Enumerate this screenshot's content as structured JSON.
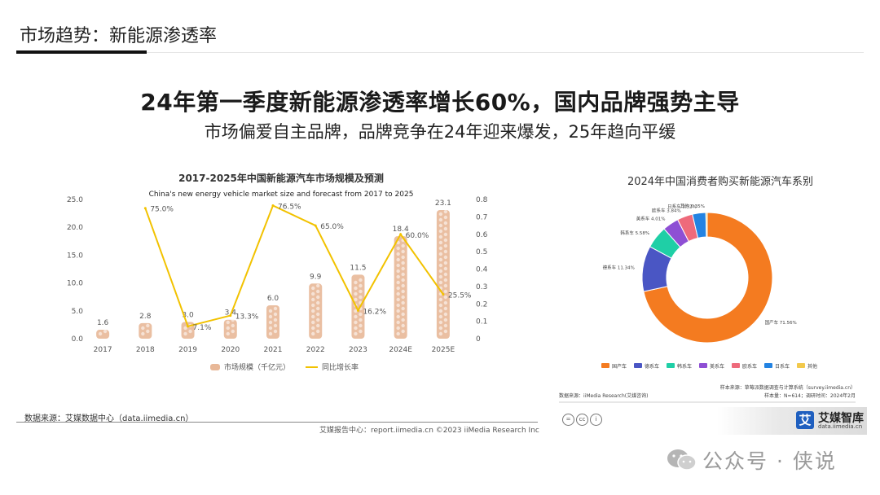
{
  "section_title": "市场趋势：新能源渗透率",
  "headline": "24年第一季度新能源渗透率增长60%，国内品牌强势主导",
  "subline": "市场偏爱自主品牌，品牌竞争在24年迎来爆发，25年趋向平缓",
  "colors": {
    "bar": "#e8b898",
    "line": "#f2c200",
    "accent": "#f47b20"
  },
  "chart_data": [
    {
      "type": "bar",
      "title": "2017-2025年中国新能源汽车市场规模及预测",
      "subtitle": "China's new energy vehicle market size and forecast from 2017 to 2025",
      "categories": [
        "2017",
        "2018",
        "2019",
        "2020",
        "2021",
        "2022",
        "2023",
        "2024E",
        "2025E"
      ],
      "series": [
        {
          "name": "市场规模（千亿元）",
          "type": "bar",
          "axis": "left",
          "values": [
            1.6,
            2.8,
            3.0,
            3.4,
            6.0,
            9.9,
            11.5,
            18.4,
            23.1
          ],
          "labels": [
            "1.6",
            "2.8",
            "3.0",
            "3.4",
            "6.0",
            "9.9",
            "11.5",
            "18.4",
            "23.1"
          ]
        },
        {
          "name": "同比增长率",
          "type": "line",
          "axis": "right",
          "values": [
            null,
            0.75,
            0.071,
            0.133,
            0.765,
            0.65,
            0.162,
            0.6,
            0.255
          ],
          "labels": [
            "",
            "75.0%",
            "7.1%",
            "13.3%",
            "76.5%",
            "65.0%",
            "16.2%",
            "60.0%",
            "25.5%"
          ]
        }
      ],
      "y_left": {
        "ticks": [
          "0.0",
          "5.0",
          "10.0",
          "15.0",
          "20.0",
          "25.0"
        ],
        "range": [
          0,
          25
        ]
      },
      "y_right": {
        "ticks": [
          "0",
          "0.1",
          "0.2",
          "0.3",
          "0.4",
          "0.5",
          "0.6",
          "0.7",
          "0.8"
        ],
        "range": [
          0,
          0.8
        ]
      },
      "legend_position": "bottom",
      "grid": false
    },
    {
      "type": "pie",
      "donut": true,
      "title": "2024年中国消费者购买新能源汽车系别",
      "slices": [
        {
          "name": "国产车",
          "value": 71.56,
          "label": "国产车 71.56%",
          "color": "#f47b20"
        },
        {
          "name": "德系车",
          "value": 11.34,
          "label": "德系车 11.34%",
          "color": "#4a56c4"
        },
        {
          "name": "韩系车",
          "value": 5.58,
          "label": "韩系车 5.58%",
          "color": "#1fcfa6"
        },
        {
          "name": "美系车",
          "value": 4.01,
          "label": "美系车 4.01%",
          "color": "#8e4fd4"
        },
        {
          "name": "欧系车",
          "value": 3.84,
          "label": "欧系车 3.84%",
          "color": "#ee6a7b"
        },
        {
          "name": "日系车",
          "value": 3.32,
          "label": "日系车 3.32%",
          "color": "#2383e2"
        },
        {
          "name": "其他",
          "value": 0.35,
          "label": "其他 0.35%",
          "color": "#f2c94c"
        }
      ],
      "legend_position": "bottom"
    }
  ],
  "source_left": "数据来源：艾媒数据中心（data.iimedia.cn）",
  "footer_left": "艾媒报告中心：report.iimedia.cn   ©2023  iiMedia Research  Inc",
  "pie_source": "数据来源：iiMedia Research(艾媒咨询)",
  "pie_sample_source": "样本来源：草莓派数据调查与计算系统（survey.iimedia.cn）",
  "pie_sample_info": "样本量：N=614；调研时间：2024年2月",
  "cc_icons": [
    "=",
    "cc",
    "i"
  ],
  "logo_name": "艾媒智库",
  "logo_url": "data.iimedia.cn",
  "logo_badge": "艾",
  "watermark_icon": "wechat-icon",
  "watermark_text": "公众号 · 侠说"
}
